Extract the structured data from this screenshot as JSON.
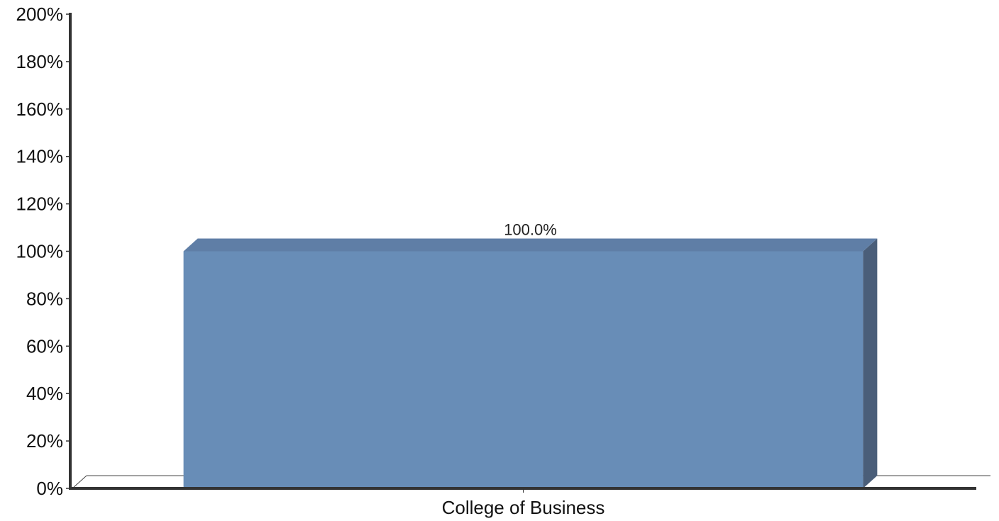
{
  "chart_data": {
    "type": "bar",
    "categories": [
      "College of Business"
    ],
    "series": [
      {
        "values": [
          100.0
        ],
        "data_labels": [
          "100.0%"
        ]
      }
    ],
    "yticks": [
      "0%",
      "20%",
      "40%",
      "60%",
      "80%",
      "100%",
      "120%",
      "140%",
      "160%",
      "180%",
      "200%"
    ],
    "ylim": [
      0,
      200
    ],
    "ytick_step": 20,
    "grid": false,
    "legend": "none",
    "style": "3d",
    "colors": {
      "bar_front": "#688db7",
      "bar_top": "#5f7ea6",
      "bar_side": "#4a5e79",
      "axis": "#333333",
      "floor": "#444444"
    }
  }
}
